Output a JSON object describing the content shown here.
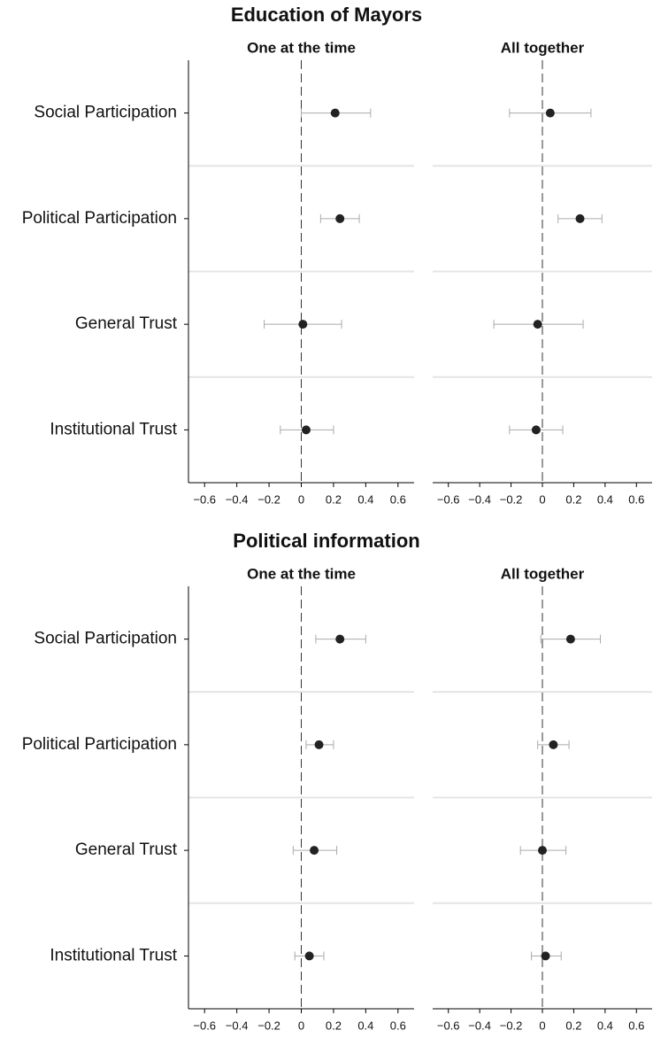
{
  "chart_data": [
    {
      "type": "coefplot",
      "title": "Education of Mayors",
      "categories": [
        "Social Participation",
        "Political Participation",
        "General Trust",
        "Institutional Trust"
      ],
      "xlim": [
        -0.7,
        0.7
      ],
      "xticks": [
        {
          "value": -0.6,
          "label": "−0.6"
        },
        {
          "value": -0.4,
          "label": "−0.4"
        },
        {
          "value": -0.2,
          "label": "−0.2"
        },
        0,
        0.2,
        0.4,
        0.6
      ],
      "reference_line": 0,
      "color": "#222222",
      "error_color": "#aaaaaa",
      "panels": [
        {
          "subtitle": "One at the time",
          "values": [
            0.21,
            0.24,
            0.01,
            0.03
          ],
          "ci_low": [
            0.0,
            0.12,
            -0.23,
            -0.13
          ],
          "ci_high": [
            0.43,
            0.36,
            0.25,
            0.2
          ]
        },
        {
          "subtitle": "All together",
          "values": [
            0.05,
            0.24,
            -0.03,
            -0.04
          ],
          "ci_low": [
            -0.21,
            0.1,
            -0.31,
            -0.21
          ],
          "ci_high": [
            0.31,
            0.38,
            0.26,
            0.13
          ]
        }
      ]
    },
    {
      "type": "coefplot",
      "title": "Political information",
      "categories": [
        "Social Participation",
        "Political Participation",
        "General Trust",
        "Institutional Trust"
      ],
      "xlim": [
        -0.7,
        0.7
      ],
      "xticks": [
        {
          "value": -0.6,
          "label": "−0.6"
        },
        {
          "value": -0.4,
          "label": "−0.4"
        },
        {
          "value": -0.2,
          "label": "−0.2"
        },
        0,
        0.2,
        0.4,
        0.6
      ],
      "reference_line": 0,
      "color": "#222222",
      "error_color": "#aaaaaa",
      "panels": [
        {
          "subtitle": "One at the time",
          "values": [
            0.24,
            0.11,
            0.08,
            0.05
          ],
          "ci_low": [
            0.09,
            0.03,
            -0.05,
            -0.04
          ],
          "ci_high": [
            0.4,
            0.2,
            0.22,
            0.14
          ]
        },
        {
          "subtitle": "All together",
          "values": [
            0.18,
            0.07,
            0.0,
            0.02
          ],
          "ci_low": [
            -0.01,
            -0.03,
            -0.14,
            -0.07
          ],
          "ci_high": [
            0.37,
            0.17,
            0.15,
            0.12
          ]
        }
      ]
    }
  ]
}
